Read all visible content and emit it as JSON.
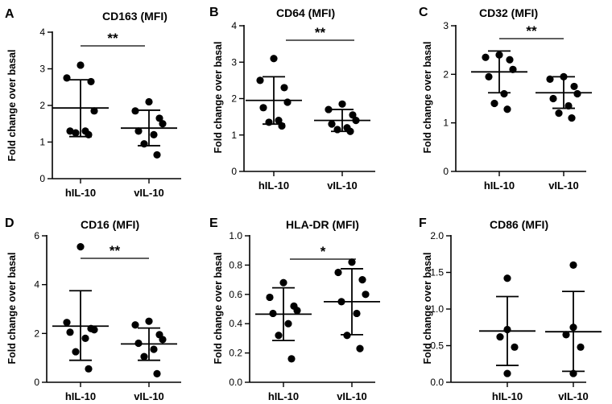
{
  "chart_data": [
    {
      "letter": "A",
      "type": "scatter",
      "title": "CD163 (MFI)",
      "ylabel": "Fold change over basal",
      "ylim": [
        0,
        4
      ],
      "yticks": [
        "0",
        "1",
        "2",
        "3",
        "4"
      ],
      "categories": [
        "hIL-10",
        "vIL-10"
      ],
      "groups": [
        {
          "name": "hIL-10",
          "mean": 1.93,
          "sd_low": 1.15,
          "sd_high": 2.7,
          "points": [
            3.1,
            2.75,
            2.65,
            1.85,
            1.3,
            1.3,
            1.25,
            1.2
          ]
        },
        {
          "name": "vIL-10",
          "mean": 1.38,
          "sd_low": 0.9,
          "sd_high": 1.87,
          "points": [
            2.1,
            1.85,
            1.65,
            1.5,
            1.3,
            1.2,
            0.95,
            0.65
          ]
        }
      ],
      "significance": "**"
    },
    {
      "letter": "B",
      "type": "scatter",
      "title": "CD64 (MFI)",
      "ylabel": "Fold change over basal",
      "ylim": [
        0,
        4
      ],
      "yticks": [
        "0",
        "1",
        "2",
        "3",
        "4"
      ],
      "categories": [
        "hIL-10",
        "vIL-10"
      ],
      "groups": [
        {
          "name": "hIL-10",
          "mean": 1.95,
          "sd_low": 1.3,
          "sd_high": 2.6,
          "points": [
            3.1,
            2.5,
            2.3,
            1.9,
            1.75,
            1.4,
            1.35,
            1.25
          ]
        },
        {
          "name": "vIL-10",
          "mean": 1.4,
          "sd_low": 1.1,
          "sd_high": 1.7,
          "points": [
            1.85,
            1.7,
            1.55,
            1.4,
            1.3,
            1.2,
            1.15,
            1.1
          ]
        }
      ],
      "significance": "**"
    },
    {
      "letter": "C",
      "type": "scatter",
      "title": "CD32 (MFI)",
      "ylabel": "Fold change over basal",
      "ylim": [
        0,
        3
      ],
      "yticks": [
        "0",
        "1",
        "2",
        "3"
      ],
      "categories": [
        "hIL-10",
        "vIL-10"
      ],
      "groups": [
        {
          "name": "hIL-10",
          "mean": 2.05,
          "sd_low": 1.62,
          "sd_high": 2.48,
          "points": [
            2.4,
            2.35,
            2.3,
            2.1,
            1.95,
            1.6,
            1.4,
            1.28
          ]
        },
        {
          "name": "vIL-10",
          "mean": 1.62,
          "sd_low": 1.3,
          "sd_high": 1.95,
          "points": [
            1.95,
            1.9,
            1.75,
            1.6,
            1.5,
            1.35,
            1.2,
            1.1
          ]
        }
      ],
      "significance": "**"
    },
    {
      "letter": "D",
      "type": "scatter",
      "title": "CD16 (MFI)",
      "ylabel": "Fold change over basal",
      "ylim": [
        0,
        6
      ],
      "yticks": [
        "0",
        "2",
        "4",
        "6"
      ],
      "categories": [
        "hIL-10",
        "vIL-10"
      ],
      "groups": [
        {
          "name": "hIL-10",
          "mean": 2.3,
          "sd_low": 0.9,
          "sd_high": 3.75,
          "points": [
            5.55,
            2.45,
            2.2,
            2.15,
            2.05,
            1.8,
            1.25,
            0.55
          ]
        },
        {
          "name": "vIL-10",
          "mean": 1.57,
          "sd_low": 0.9,
          "sd_high": 2.22,
          "points": [
            2.5,
            2.35,
            1.95,
            1.75,
            1.6,
            1.35,
            1.05,
            0.35
          ]
        }
      ],
      "significance": "**"
    },
    {
      "letter": "E",
      "type": "scatter",
      "title": "HLA-DR (MFI)",
      "ylabel": "Fold change over basal",
      "ylim": [
        0,
        1.0
      ],
      "yticks": [
        "0.0",
        "0.2",
        "0.4",
        "0.6",
        "0.8",
        "1.0"
      ],
      "categories": [
        "hIL-10",
        "vIL-10"
      ],
      "groups": [
        {
          "name": "hIL-10",
          "mean": 0.465,
          "sd_low": 0.285,
          "sd_high": 0.645,
          "points": [
            0.68,
            0.58,
            0.52,
            0.49,
            0.47,
            0.4,
            0.32,
            0.16
          ]
        },
        {
          "name": "vIL-10",
          "mean": 0.55,
          "sd_low": 0.325,
          "sd_high": 0.775,
          "points": [
            0.82,
            0.75,
            0.7,
            0.6,
            0.55,
            0.47,
            0.32,
            0.23
          ]
        }
      ],
      "significance": "*"
    },
    {
      "letter": "F",
      "type": "scatter",
      "title": "CD86 (MFI)",
      "ylabel": "Fold change over basal",
      "ylim": [
        0,
        2.0
      ],
      "yticks": [
        "0.0",
        "0.5",
        "1.0",
        "1.5",
        "2.0"
      ],
      "categories": [
        "hIL-10",
        "vIL-10"
      ],
      "groups": [
        {
          "name": "hIL-10",
          "mean": 0.7,
          "sd_low": 0.23,
          "sd_high": 1.17,
          "points": [
            1.42,
            0.72,
            0.62,
            0.48,
            0.12
          ]
        },
        {
          "name": "vIL-10",
          "mean": 0.69,
          "sd_low": 0.15,
          "sd_high": 1.24,
          "points": [
            1.6,
            0.75,
            0.65,
            0.48,
            0.12
          ]
        }
      ],
      "significance": ""
    }
  ]
}
